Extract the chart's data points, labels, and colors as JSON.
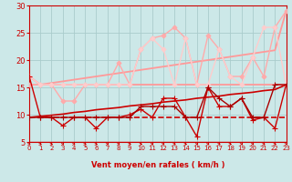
{
  "bg_color": "#cce8e8",
  "grid_color": "#aacccc",
  "xlabel": "Vent moyen/en rafales ( km/h )",
  "xlim": [
    0,
    23
  ],
  "ylim": [
    5,
    30
  ],
  "yticks": [
    5,
    10,
    15,
    20,
    25,
    30
  ],
  "xticks": [
    0,
    1,
    2,
    3,
    4,
    5,
    6,
    7,
    8,
    9,
    10,
    11,
    12,
    13,
    14,
    15,
    16,
    17,
    18,
    19,
    20,
    21,
    22,
    23
  ],
  "lines": [
    {
      "x": [
        0,
        1,
        2,
        3,
        4,
        5,
        6,
        7,
        8,
        9,
        10,
        11,
        12,
        13,
        14,
        15,
        16,
        17,
        18,
        19,
        20,
        21,
        22,
        23
      ],
      "y": [
        9.5,
        9.5,
        9.5,
        9.5,
        9.5,
        9.5,
        9.5,
        9.5,
        9.5,
        9.5,
        9.5,
        9.5,
        9.5,
        9.5,
        9.5,
        9.5,
        9.5,
        9.5,
        9.5,
        9.5,
        9.5,
        9.5,
        9.5,
        9.5
      ],
      "color": "#cc0000",
      "lw": 1.2,
      "marker": null,
      "ms": 0,
      "ls": "--",
      "zorder": 3
    },
    {
      "x": [
        0,
        1,
        2,
        3,
        4,
        5,
        6,
        7,
        8,
        9,
        10,
        11,
        12,
        13,
        14,
        15,
        16,
        17,
        18,
        19,
        20,
        21,
        22,
        23
      ],
      "y": [
        9.5,
        9.7,
        9.9,
        10.1,
        10.4,
        10.6,
        10.9,
        11.1,
        11.3,
        11.6,
        11.8,
        12.0,
        12.3,
        12.5,
        12.7,
        13.0,
        13.2,
        13.4,
        13.7,
        13.9,
        14.1,
        14.4,
        14.6,
        15.5
      ],
      "color": "#cc0000",
      "lw": 1.2,
      "marker": null,
      "ms": 0,
      "ls": "-",
      "zorder": 3
    },
    {
      "x": [
        0,
        1,
        2,
        3,
        4,
        5,
        6,
        7,
        8,
        9,
        10,
        11,
        12,
        13,
        14,
        15,
        16,
        17,
        18,
        19,
        20,
        21,
        22,
        23
      ],
      "y": [
        17,
        9.5,
        9.5,
        8,
        9.5,
        9.5,
        7.5,
        9.5,
        9.5,
        10,
        11,
        9.5,
        13,
        13,
        9.5,
        6,
        15,
        11.5,
        11.5,
        13,
        9,
        9.5,
        7.5,
        15.5
      ],
      "color": "#cc0000",
      "lw": 1.0,
      "marker": "+",
      "ms": 4,
      "ls": "-",
      "zorder": 5
    },
    {
      "x": [
        0,
        1,
        2,
        3,
        4,
        5,
        6,
        7,
        8,
        9,
        10,
        11,
        12,
        13,
        14,
        15,
        16,
        17,
        18,
        19,
        20,
        21,
        22,
        23
      ],
      "y": [
        9.5,
        9.5,
        9.5,
        9.5,
        9.5,
        9.5,
        9.5,
        9.5,
        9.5,
        9.5,
        11.5,
        11.5,
        11.5,
        11.5,
        9.5,
        9.5,
        15,
        13,
        11.5,
        13,
        9.5,
        9.5,
        15.5,
        15.5
      ],
      "color": "#aa0000",
      "lw": 1.0,
      "marker": "+",
      "ms": 4,
      "ls": "-",
      "zorder": 5
    },
    {
      "x": [
        0,
        1,
        2,
        3,
        4,
        5,
        6,
        7,
        8,
        9,
        10,
        11,
        12,
        13,
        14,
        15,
        16,
        17,
        18,
        19,
        20,
        21,
        22,
        23
      ],
      "y": [
        15.5,
        15.5,
        15.5,
        15.5,
        15.5,
        15.5,
        15.5,
        15.5,
        15.5,
        15.5,
        15.5,
        15.5,
        15.5,
        15.5,
        15.5,
        15.5,
        15.5,
        15.5,
        15.5,
        15.5,
        15.5,
        15.5,
        15.5,
        15.5
      ],
      "color": "#ff9999",
      "lw": 1.3,
      "marker": null,
      "ms": 0,
      "ls": "-",
      "zorder": 3
    },
    {
      "x": [
        0,
        1,
        2,
        3,
        4,
        5,
        6,
        7,
        8,
        9,
        10,
        11,
        12,
        13,
        14,
        15,
        16,
        17,
        18,
        19,
        20,
        21,
        22,
        23
      ],
      "y": [
        17,
        15.5,
        15.8,
        16.1,
        16.4,
        16.7,
        17.0,
        17.3,
        17.6,
        17.9,
        18.2,
        18.5,
        18.8,
        19.1,
        19.4,
        19.7,
        20.0,
        20.3,
        20.6,
        20.9,
        21.2,
        21.5,
        21.8,
        29
      ],
      "color": "#ff9999",
      "lw": 1.3,
      "marker": null,
      "ms": 0,
      "ls": "-",
      "zorder": 3
    },
    {
      "x": [
        0,
        1,
        2,
        3,
        4,
        5,
        6,
        7,
        8,
        9,
        10,
        11,
        12,
        13,
        14,
        15,
        16,
        17,
        18,
        19,
        20,
        21,
        22,
        23
      ],
      "y": [
        15.5,
        15.5,
        15.5,
        12.5,
        12.5,
        15.5,
        15.5,
        15.5,
        19.5,
        15.5,
        22,
        24,
        24.5,
        26,
        24,
        15.5,
        24.5,
        22,
        17,
        17,
        20.5,
        17,
        26,
        29
      ],
      "color": "#ffaaaa",
      "lw": 1.0,
      "marker": "D",
      "ms": 2.5,
      "ls": "-",
      "zorder": 4
    },
    {
      "x": [
        0,
        1,
        2,
        3,
        4,
        5,
        6,
        7,
        8,
        9,
        10,
        11,
        12,
        13,
        14,
        15,
        16,
        17,
        18,
        19,
        20,
        21,
        22,
        23
      ],
      "y": [
        17,
        15.5,
        15.5,
        15.5,
        15.5,
        15.5,
        15.5,
        15.5,
        15.5,
        15.5,
        22,
        24,
        22,
        15.5,
        24,
        15.5,
        15.5,
        22,
        17,
        15.5,
        20.5,
        26,
        26,
        15.5
      ],
      "color": "#ffcccc",
      "lw": 1.0,
      "marker": "D",
      "ms": 2.5,
      "ls": "-",
      "zorder": 4
    }
  ],
  "spine_color": "#cc0000",
  "tick_color": "#cc0000",
  "label_color": "#cc0000",
  "xlabel_fontsize": 6,
  "ytick_fontsize": 6,
  "xtick_fontsize": 5
}
